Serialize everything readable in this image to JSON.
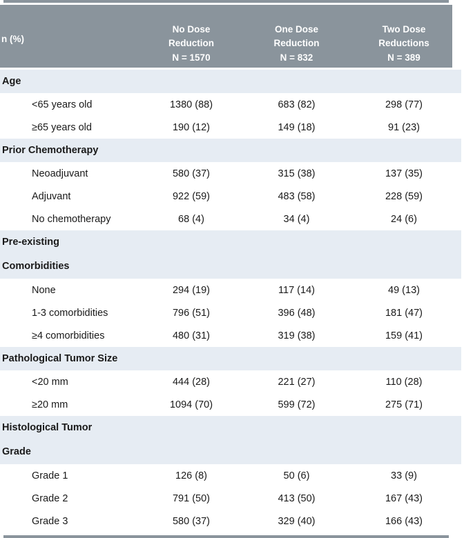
{
  "colors": {
    "header_bg": "#8A949C",
    "section_bg": "#E6ECF3",
    "header_text": "#FFFFFF",
    "body_text": "#1A1A1A"
  },
  "header": {
    "label_column": "n (%)",
    "columns": [
      {
        "line1": "No Dose",
        "line2": "Reduction",
        "line3": "N = 1570"
      },
      {
        "line1": "One Dose",
        "line2": "Reduction",
        "line3": "N = 832"
      },
      {
        "line1": "Two Dose",
        "line2": "Reductions",
        "line3": "N = 389"
      }
    ]
  },
  "sections": [
    {
      "title_lines": [
        "Age"
      ],
      "rows": [
        {
          "label": "<65 years old",
          "values": [
            "1380 (88)",
            "683 (82)",
            "298 (77)"
          ]
        },
        {
          "label": "≥65 years old",
          "values": [
            "190 (12)",
            "149 (18)",
            "91 (23)"
          ]
        }
      ]
    },
    {
      "title_lines": [
        "Prior Chemotherapy"
      ],
      "rows": [
        {
          "label": "Neoadjuvant",
          "values": [
            "580 (37)",
            "315 (38)",
            "137 (35)"
          ]
        },
        {
          "label": "Adjuvant",
          "values": [
            "922 (59)",
            "483 (58)",
            "228 (59)"
          ]
        },
        {
          "label": "No chemotherapy",
          "values": [
            "68 (4)",
            "34 (4)",
            "24 (6)"
          ]
        }
      ]
    },
    {
      "title_lines": [
        "Pre-existing",
        "Comorbidities"
      ],
      "rows": [
        {
          "label": "None",
          "values": [
            "294 (19)",
            "117 (14)",
            "49 (13)"
          ]
        },
        {
          "label": "1-3 comorbidities",
          "values": [
            "796 (51)",
            "396 (48)",
            "181 (47)"
          ]
        },
        {
          "label": "≥4 comorbidities",
          "values": [
            "480 (31)",
            "319 (38)",
            "159 (41)"
          ]
        }
      ]
    },
    {
      "title_lines": [
        "Pathological Tumor Size"
      ],
      "rows": [
        {
          "label": "<20 mm",
          "values": [
            "444 (28)",
            "221 (27)",
            "110 (28)"
          ]
        },
        {
          "label": "≥20 mm",
          "values": [
            "1094 (70)",
            "599 (72)",
            "275 (71)"
          ]
        }
      ]
    },
    {
      "title_lines": [
        "Histological Tumor",
        "Grade"
      ],
      "rows": [
        {
          "label": "Grade 1",
          "values": [
            "126 (8)",
            "50 (6)",
            "33 (9)"
          ]
        },
        {
          "label": "Grade 2",
          "values": [
            "791 (50)",
            "413 (50)",
            "167 (43)"
          ]
        },
        {
          "label": "Grade 3",
          "values": [
            "580 (37)",
            "329 (40)",
            "166 (43)"
          ]
        }
      ]
    }
  ]
}
